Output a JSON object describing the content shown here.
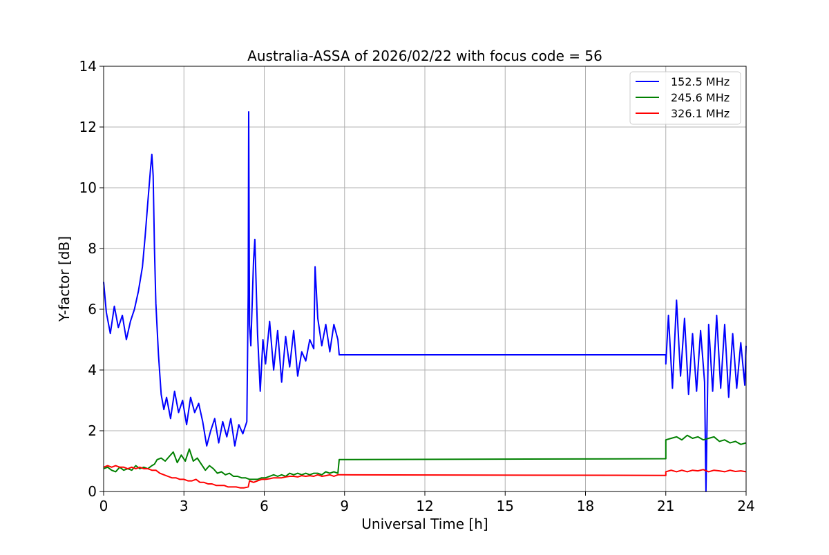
{
  "chart_data": {
    "type": "line",
    "title": "Australia-ASSA of 2026/02/22 with focus code = 56",
    "xlabel": "Universal Time [h]",
    "ylabel": "Y-factor [dB]",
    "xlim": [
      0,
      24
    ],
    "ylim": [
      0,
      14
    ],
    "xticks": [
      0,
      3,
      6,
      9,
      12,
      15,
      18,
      21,
      24
    ],
    "yticks": [
      0,
      2,
      4,
      6,
      8,
      10,
      12,
      14
    ],
    "grid": true,
    "legend_position": "top-right",
    "series": [
      {
        "name": "152.5 MHz",
        "color": "#0000ff",
        "x": [
          0,
          0.1,
          0.25,
          0.4,
          0.55,
          0.7,
          0.85,
          1.0,
          1.15,
          1.3,
          1.45,
          1.55,
          1.65,
          1.75,
          1.8,
          1.85,
          1.9,
          1.95,
          2.05,
          2.15,
          2.25,
          2.35,
          2.5,
          2.65,
          2.8,
          2.95,
          3.1,
          3.25,
          3.4,
          3.55,
          3.7,
          3.85,
          4.0,
          4.15,
          4.3,
          4.45,
          4.6,
          4.75,
          4.9,
          5.05,
          5.2,
          5.35,
          5.4,
          5.42,
          5.45,
          5.5,
          5.6,
          5.65,
          5.75,
          5.85,
          5.95,
          6.05,
          6.2,
          6.35,
          6.5,
          6.65,
          6.8,
          6.95,
          7.1,
          7.25,
          7.4,
          7.55,
          7.7,
          7.85,
          7.9,
          8.0,
          8.15,
          8.3,
          8.45,
          8.6,
          8.75,
          8.8,
          21.0,
          21.0,
          21.1,
          21.25,
          21.4,
          21.55,
          21.7,
          21.85,
          22.0,
          22.15,
          22.3,
          22.45,
          22.5,
          22.6,
          22.75,
          22.9,
          23.05,
          23.2,
          23.35,
          23.5,
          23.65,
          23.8,
          23.95,
          24.0
        ],
        "y": [
          6.9,
          5.9,
          5.2,
          6.1,
          5.4,
          5.8,
          5.0,
          5.6,
          6.0,
          6.6,
          7.4,
          8.4,
          9.5,
          10.6,
          11.1,
          10.4,
          8.0,
          6.2,
          4.5,
          3.2,
          2.7,
          3.1,
          2.4,
          3.3,
          2.6,
          3.0,
          2.2,
          3.1,
          2.6,
          2.9,
          2.3,
          1.5,
          2.0,
          2.4,
          1.6,
          2.3,
          1.8,
          2.4,
          1.5,
          2.2,
          1.9,
          2.3,
          6.5,
          12.5,
          5.5,
          4.8,
          7.6,
          8.3,
          5.2,
          3.3,
          5.0,
          4.2,
          5.6,
          4.0,
          5.3,
          3.6,
          5.1,
          4.1,
          5.3,
          3.8,
          4.6,
          4.3,
          5.0,
          4.7,
          7.4,
          5.7,
          4.8,
          5.5,
          4.6,
          5.5,
          5.0,
          4.5,
          4.5,
          4.2,
          5.8,
          3.4,
          6.3,
          3.8,
          5.7,
          3.2,
          5.2,
          3.3,
          5.3,
          3.6,
          0.0,
          5.5,
          3.3,
          5.8,
          3.4,
          5.5,
          3.1,
          5.2,
          3.4,
          4.9,
          3.5,
          4.8
        ]
      },
      {
        "name": "245.6 MHz",
        "color": "#008000",
        "x": [
          0,
          0.15,
          0.3,
          0.45,
          0.6,
          0.75,
          0.9,
          1.05,
          1.2,
          1.35,
          1.5,
          1.65,
          1.8,
          1.9,
          2.0,
          2.15,
          2.3,
          2.45,
          2.6,
          2.75,
          2.9,
          3.05,
          3.2,
          3.35,
          3.5,
          3.65,
          3.8,
          3.95,
          4.1,
          4.25,
          4.4,
          4.55,
          4.7,
          4.85,
          5.0,
          5.15,
          5.3,
          5.45,
          5.6,
          5.75,
          5.9,
          6.05,
          6.2,
          6.35,
          6.5,
          6.65,
          6.8,
          6.95,
          7.1,
          7.25,
          7.4,
          7.55,
          7.7,
          7.85,
          8.0,
          8.15,
          8.3,
          8.45,
          8.6,
          8.75,
          8.8,
          21.0,
          21.0,
          21.2,
          21.4,
          21.6,
          21.8,
          22.0,
          22.2,
          22.4,
          22.6,
          22.8,
          23.0,
          23.2,
          23.4,
          23.6,
          23.8,
          24.0
        ],
        "y": [
          0.75,
          0.8,
          0.7,
          0.65,
          0.8,
          0.7,
          0.75,
          0.7,
          0.85,
          0.75,
          0.8,
          0.75,
          0.85,
          0.9,
          1.05,
          1.1,
          1.0,
          1.15,
          1.3,
          0.95,
          1.2,
          1.0,
          1.4,
          1.0,
          1.1,
          0.9,
          0.7,
          0.85,
          0.75,
          0.6,
          0.65,
          0.55,
          0.6,
          0.5,
          0.5,
          0.45,
          0.45,
          0.4,
          0.4,
          0.4,
          0.45,
          0.45,
          0.5,
          0.55,
          0.5,
          0.55,
          0.5,
          0.6,
          0.55,
          0.6,
          0.55,
          0.6,
          0.55,
          0.6,
          0.6,
          0.55,
          0.65,
          0.6,
          0.65,
          0.6,
          1.05,
          1.08,
          1.7,
          1.75,
          1.8,
          1.7,
          1.85,
          1.75,
          1.8,
          1.7,
          1.75,
          1.8,
          1.65,
          1.7,
          1.6,
          1.65,
          1.55,
          1.6
        ]
      },
      {
        "name": "326.1 MHz",
        "color": "#ff0000",
        "x": [
          0,
          0.15,
          0.3,
          0.45,
          0.6,
          0.75,
          0.9,
          1.05,
          1.2,
          1.35,
          1.5,
          1.65,
          1.8,
          1.95,
          2.1,
          2.25,
          2.4,
          2.55,
          2.7,
          2.85,
          3.0,
          3.15,
          3.3,
          3.45,
          3.6,
          3.75,
          3.9,
          4.05,
          4.2,
          4.35,
          4.5,
          4.65,
          4.8,
          4.95,
          5.1,
          5.25,
          5.4,
          5.45,
          5.6,
          5.75,
          5.9,
          6.05,
          6.2,
          6.35,
          6.5,
          6.65,
          6.8,
          6.95,
          7.1,
          7.25,
          7.4,
          7.55,
          7.7,
          7.85,
          8.0,
          8.15,
          8.3,
          8.45,
          8.6,
          8.75,
          8.8,
          21.0,
          21.0,
          21.2,
          21.4,
          21.6,
          21.8,
          22.0,
          22.2,
          22.4,
          22.6,
          22.8,
          23.0,
          23.2,
          23.4,
          23.6,
          23.8,
          24.0
        ],
        "y": [
          0.8,
          0.85,
          0.8,
          0.85,
          0.8,
          0.8,
          0.75,
          0.8,
          0.75,
          0.8,
          0.75,
          0.75,
          0.7,
          0.7,
          0.6,
          0.55,
          0.5,
          0.45,
          0.45,
          0.4,
          0.4,
          0.35,
          0.35,
          0.4,
          0.3,
          0.3,
          0.25,
          0.25,
          0.2,
          0.2,
          0.2,
          0.15,
          0.15,
          0.15,
          0.12,
          0.12,
          0.15,
          0.35,
          0.3,
          0.35,
          0.4,
          0.4,
          0.42,
          0.45,
          0.45,
          0.45,
          0.48,
          0.5,
          0.5,
          0.48,
          0.52,
          0.5,
          0.52,
          0.5,
          0.55,
          0.5,
          0.52,
          0.55,
          0.5,
          0.55,
          0.55,
          0.53,
          0.65,
          0.7,
          0.65,
          0.7,
          0.65,
          0.7,
          0.68,
          0.72,
          0.65,
          0.7,
          0.68,
          0.65,
          0.7,
          0.66,
          0.68,
          0.65
        ]
      }
    ]
  }
}
